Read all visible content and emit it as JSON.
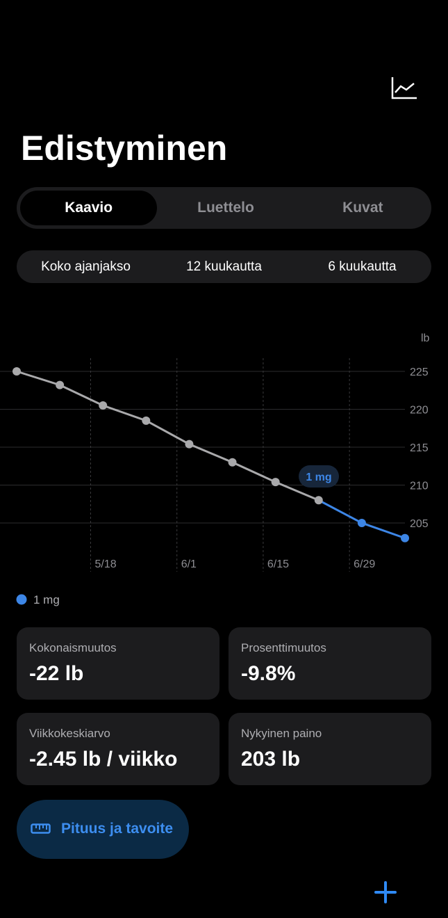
{
  "header": {
    "title": "Edistyminen"
  },
  "tabs": [
    "Kaavio",
    "Luettelo",
    "Kuvat"
  ],
  "ranges": [
    "Koko ajanjakso",
    "12 kuukautta",
    "6 kuukautta"
  ],
  "chart_data": {
    "type": "line",
    "y_unit": "lb",
    "x": [
      126,
      133,
      140,
      147,
      154,
      161,
      168,
      175,
      182,
      189
    ],
    "series": [
      {
        "color": "#a9a9ab",
        "values": [
          225,
          223.2,
          220.5,
          218.5,
          215.4,
          213,
          210.4,
          208,
          null,
          null
        ]
      },
      {
        "name": "1 mg",
        "color": "#3d86e6",
        "values": [
          null,
          null,
          null,
          null,
          null,
          null,
          null,
          208,
          205,
          203
        ]
      }
    ],
    "annotation": "1 mg",
    "xlim": [
      126,
      189
    ],
    "xticks": [
      {
        "value": 138,
        "label": "5/18"
      },
      {
        "value": 152,
        "label": "6/1"
      },
      {
        "value": 166,
        "label": "6/15"
      },
      {
        "value": 180,
        "label": "6/29"
      }
    ],
    "ylim": [
      200.5,
      226.5
    ],
    "yticks": [
      205,
      210,
      215,
      220,
      225
    ],
    "grid": true
  },
  "stats": [
    {
      "label": "Kokonaismuutos",
      "value": "-22 lb"
    },
    {
      "label": "Prosenttimuutos",
      "value": "-9.8%"
    },
    {
      "label": "Viikkokeskiarvo",
      "value": "-2.45 lb / viikko"
    },
    {
      "label": "Nykyinen paino",
      "value": "203 lb"
    }
  ],
  "button": {
    "label": "Pituus ja tavoite"
  }
}
